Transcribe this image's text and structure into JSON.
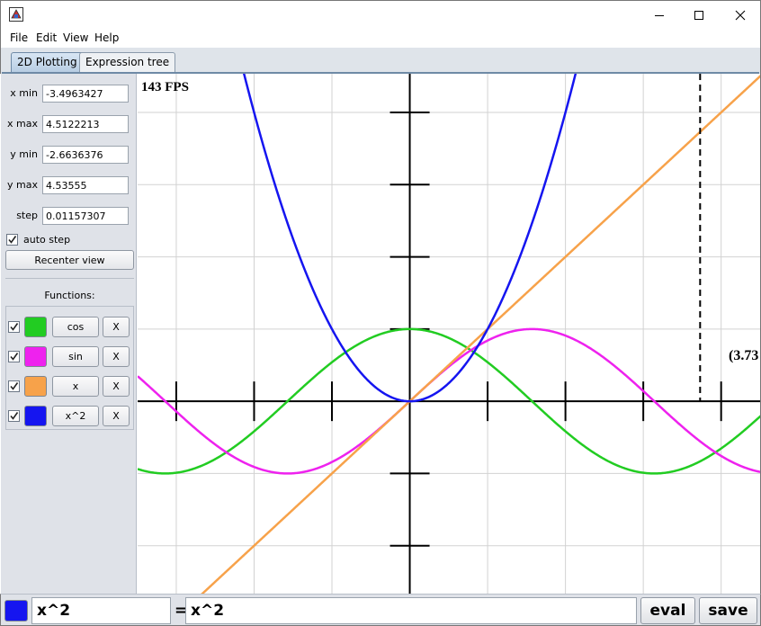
{
  "window": {
    "title": ""
  },
  "menu": [
    "File",
    "Edit",
    "View",
    "Help"
  ],
  "tabs": [
    {
      "label": "2D Plotting",
      "active": true
    },
    {
      "label": "Expression tree",
      "active": false
    }
  ],
  "view": {
    "xmin_label": "x min",
    "xmin": "-3.4963427",
    "xmax_label": "x max",
    "xmax": "4.5122213",
    "ymin_label": "y min",
    "ymin": "-2.6636376",
    "ymax_label": "y max",
    "ymax": "4.53555",
    "step_label": "step",
    "step": "0.01157307",
    "auto_step_label": "auto step",
    "auto_step": true,
    "recenter_label": "Recenter view"
  },
  "functions_header": "Functions:",
  "functions": [
    {
      "name": "cos",
      "color": "#22cc22",
      "enabled": true,
      "remove_label": "X"
    },
    {
      "name": "sin",
      "color": "#ee22ee",
      "enabled": true,
      "remove_label": "X"
    },
    {
      "name": "x",
      "color": "#f7a24a",
      "enabled": true,
      "remove_label": "X"
    },
    {
      "name": "x^2",
      "color": "#1515f0",
      "enabled": true,
      "remove_label": "X"
    }
  ],
  "plot": {
    "fps_text": "143 FPS",
    "cursor_readout": "(3.73",
    "cursor_x": 3.73
  },
  "expression": {
    "input": "x^2",
    "equals": "=",
    "result": "x^2",
    "swatch_color": "#1515f0",
    "eval_label": "eval",
    "save_label": "save"
  }
}
